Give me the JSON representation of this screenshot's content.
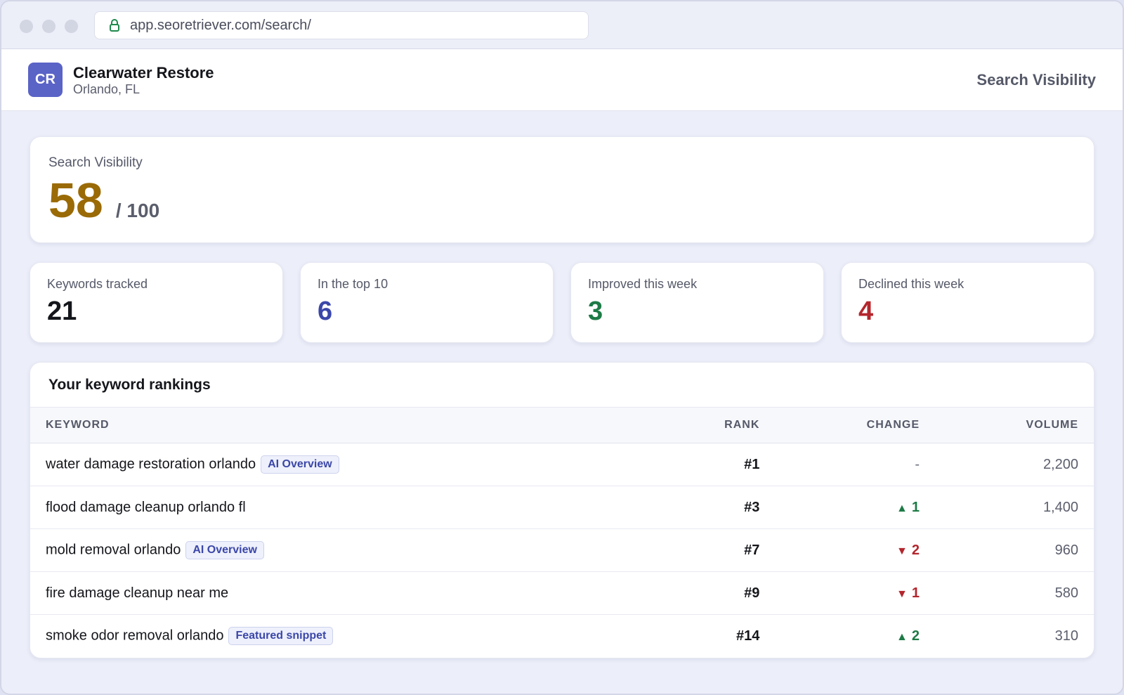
{
  "browser": {
    "url": "app.seoretriever.com/search/"
  },
  "header": {
    "avatar_initials": "CR",
    "business_name": "Clearwater Restore",
    "business_location": "Orlando, FL",
    "page_title": "Search Visibility"
  },
  "score": {
    "label": "Search Visibility",
    "value": "58",
    "total": "/ 100"
  },
  "stats": [
    {
      "label": "Keywords tracked",
      "value": "21",
      "color": "#15161b"
    },
    {
      "label": "In the top 10",
      "value": "6",
      "color": "#3b47a8"
    },
    {
      "label": "Improved this week",
      "value": "3",
      "color": "#1e7a46"
    },
    {
      "label": "Declined this week",
      "value": "4",
      "color": "#b3262d"
    }
  ],
  "rankings": {
    "title": "Your keyword rankings",
    "columns": [
      "KEYWORD",
      "RANK",
      "CHANGE",
      "VOLUME"
    ],
    "rows": [
      {
        "keyword": "water damage restoration orlando",
        "badge": "AI Overview",
        "rank": "#1",
        "direction": "none",
        "change": "-",
        "volume": "2,200"
      },
      {
        "keyword": "flood damage cleanup orlando fl",
        "badge": "",
        "rank": "#3",
        "direction": "up",
        "change": "1",
        "volume": "1,400"
      },
      {
        "keyword": "mold removal orlando",
        "badge": "AI Overview",
        "rank": "#7",
        "direction": "down",
        "change": "2",
        "volume": "960"
      },
      {
        "keyword": "fire damage cleanup near me",
        "badge": "",
        "rank": "#9",
        "direction": "down",
        "change": "1",
        "volume": "580"
      },
      {
        "keyword": "smoke odor removal orlando",
        "badge": "Featured snippet",
        "rank": "#14",
        "direction": "up",
        "change": "2",
        "volume": "310"
      }
    ]
  },
  "colors": {
    "accent": "#5a63c6",
    "score": "#9a6a06",
    "up": "#1e7a46",
    "down": "#b3262d"
  }
}
